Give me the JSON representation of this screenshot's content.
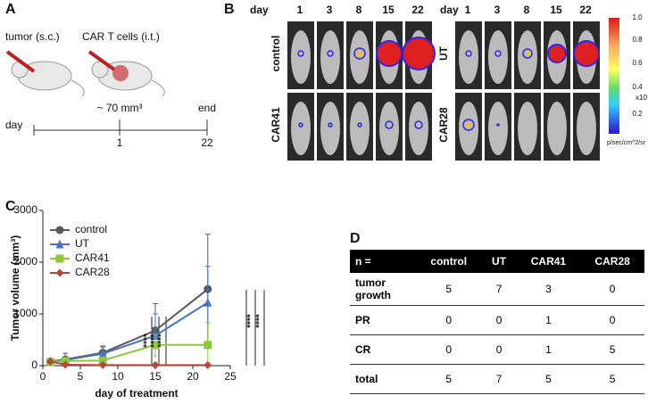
{
  "panel_a": {
    "letter": "A",
    "tumor": "tumor (s.c.)",
    "cart": "CAR T cells (i.t.)",
    "volume": "~ 70 mm³",
    "day": "day",
    "end": "end",
    "day_start": "1",
    "day_end": "22"
  },
  "panel_b": {
    "letter": "B",
    "left": {
      "day": "day",
      "days": [
        "1",
        "3",
        "8",
        "15",
        "22"
      ],
      "rows": [
        "control",
        "CAR41"
      ]
    },
    "right": {
      "day": "day",
      "days": [
        "1",
        "3",
        "8",
        "15",
        "22"
      ],
      "rows": [
        "UT",
        "CAR28"
      ]
    },
    "colorbar": {
      "ticks": [
        "1.0",
        "0.8",
        "0.6",
        "0.4",
        "0.2"
      ],
      "scale": "x10⁷",
      "unit": "p/sec/cm^2/sr"
    }
  },
  "chart_data": {
    "type": "line",
    "letter": "C",
    "x_label": "day of treatment",
    "y_label": "Tumor volume (mm³)",
    "x": [
      1,
      3,
      8,
      15,
      22
    ],
    "series": [
      {
        "name": "control",
        "color": "#595959",
        "marker": "circle",
        "values": [
          80,
          120,
          250,
          680,
          1480
        ],
        "errors": [
          40,
          120,
          130,
          520,
          1060
        ]
      },
      {
        "name": "UT",
        "color": "#4a72c4",
        "marker": "triangle",
        "values": [
          80,
          110,
          230,
          580,
          1220
        ],
        "errors": [
          30,
          60,
          130,
          420,
          700
        ]
      },
      {
        "name": "CAR41",
        "color": "#8dc63f",
        "marker": "square",
        "values": [
          70,
          90,
          100,
          400,
          400
        ],
        "errors": [
          30,
          50,
          40,
          200,
          430
        ]
      },
      {
        "name": "CAR28",
        "color": "#b5473a",
        "marker": "diamond",
        "values": [
          80,
          20,
          10,
          10,
          10
        ],
        "errors": [
          20,
          20,
          10,
          10,
          10
        ]
      }
    ],
    "xlim": [
      0,
      25
    ],
    "xticks": [
      0,
      5,
      10,
      15,
      20,
      25
    ],
    "ylim": [
      0,
      3000
    ],
    "yticks": [
      0,
      1000,
      2000,
      3000
    ],
    "annotations": [
      "****",
      "****",
      "****",
      "****",
      "****"
    ],
    "legend": "upper left"
  },
  "panel_d": {
    "letter": "D",
    "table": {
      "header": [
        "n =",
        "control",
        "UT",
        "CAR41",
        "CAR28"
      ],
      "rows": [
        [
          "tumor growth",
          "5",
          "7",
          "3",
          "0"
        ],
        [
          "PR",
          "0",
          "0",
          "1",
          "0"
        ],
        [
          "CR",
          "0",
          "0",
          "1",
          "5"
        ],
        [
          "total",
          "5",
          "7",
          "5",
          "5"
        ]
      ]
    }
  }
}
